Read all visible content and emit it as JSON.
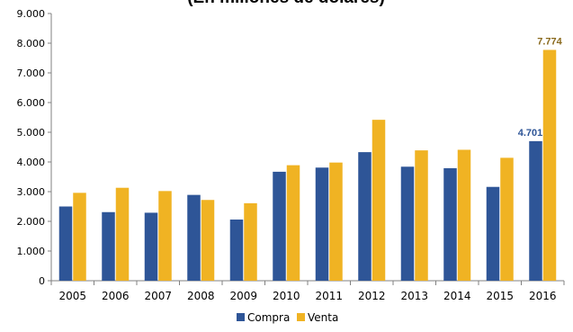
{
  "chart_data": {
    "type": "bar",
    "title": "(En millones de dólares)",
    "xlabel": "",
    "ylabel": "",
    "ylim": [
      0,
      9000
    ],
    "yticks": [
      "0",
      "1.000",
      "2.000",
      "3.000",
      "4.000",
      "5.000",
      "6.000",
      "7.000",
      "8.000",
      "9.000"
    ],
    "categories": [
      "2005",
      "2006",
      "2007",
      "2008",
      "2009",
      "2010",
      "2011",
      "2012",
      "2013",
      "2014",
      "2015",
      "2016"
    ],
    "series": [
      {
        "name": "Compra",
        "color": "#2E5597",
        "values": [
          2500,
          2310,
          2290,
          2890,
          2060,
          3670,
          3810,
          4330,
          3840,
          3790,
          3160,
          4701
        ]
      },
      {
        "name": "Venta",
        "color": "#F0B323",
        "values": [
          2960,
          3130,
          3020,
          2720,
          2610,
          3890,
          3980,
          5420,
          4390,
          4410,
          4140,
          7774
        ]
      }
    ],
    "data_labels": [
      {
        "series": 0,
        "index": 11,
        "text": "4.701",
        "color": "#2E5597"
      },
      {
        "series": 1,
        "index": 11,
        "text": "7.774",
        "color": "#8A6A1E"
      }
    ],
    "grid": false,
    "legend_position": "bottom"
  }
}
